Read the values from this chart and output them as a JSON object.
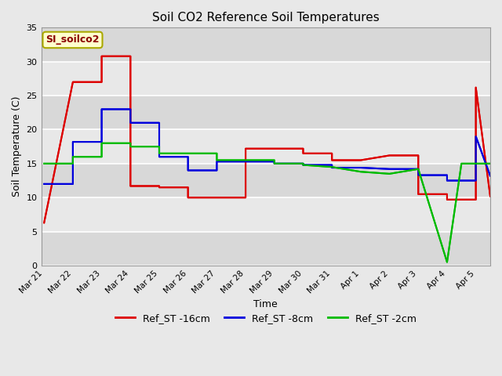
{
  "title": "Soil CO2 Reference Soil Temperatures",
  "xlabel": "Time",
  "ylabel": "Soil Temperature (C)",
  "ylim": [
    0,
    35
  ],
  "annotation_text": "SI_soilco2",
  "background_color": "#e8e8e8",
  "plot_bg_color": "#e0e0e0",
  "grid_color": "#d0d0d0",
  "series": {
    "Ref_ST -16cm": {
      "color": "#dd0000",
      "x": [
        0,
        1,
        2,
        2,
        3,
        3,
        4,
        4,
        5,
        5,
        6,
        6,
        7,
        7,
        8,
        8,
        9,
        9,
        10,
        10,
        11,
        12,
        13,
        13,
        14,
        14,
        15,
        15,
        15.5
      ],
      "y": [
        6.3,
        27.0,
        27.0,
        30.8,
        30.8,
        11.7,
        11.7,
        11.5,
        11.5,
        10.0,
        10.0,
        10.0,
        10.0,
        17.2,
        17.2,
        17.2,
        17.2,
        16.5,
        16.5,
        15.5,
        15.5,
        16.2,
        16.2,
        10.5,
        10.5,
        9.7,
        9.7,
        26.2,
        10.2
      ]
    },
    "Ref_ST -8cm": {
      "color": "#0000dd",
      "x": [
        0,
        1,
        1,
        2,
        2,
        3,
        3,
        4,
        4,
        5,
        5,
        6,
        6,
        7,
        7,
        8,
        8,
        9,
        9,
        10,
        10,
        11,
        12,
        13,
        13,
        14,
        14,
        15,
        15,
        15.5
      ],
      "y": [
        12.0,
        12.0,
        18.2,
        18.2,
        23.0,
        23.0,
        21.0,
        21.0,
        16.0,
        16.0,
        14.0,
        14.0,
        15.3,
        15.3,
        15.3,
        15.3,
        15.0,
        15.0,
        14.8,
        14.8,
        14.4,
        14.4,
        14.2,
        14.2,
        13.3,
        13.3,
        12.5,
        12.5,
        19.0,
        13.2
      ]
    },
    "Ref_ST -2cm": {
      "color": "#00bb00",
      "x": [
        0,
        1,
        1,
        2,
        2,
        3,
        3,
        4,
        4,
        5,
        5,
        6,
        6,
        7,
        7,
        8,
        8,
        9,
        9,
        10,
        11,
        12,
        12,
        13,
        13,
        14,
        14,
        14.5,
        15,
        15.5
      ],
      "y": [
        15.0,
        15.0,
        16.0,
        16.0,
        18.0,
        18.0,
        17.5,
        17.5,
        16.5,
        16.5,
        16.5,
        16.5,
        15.5,
        15.5,
        15.5,
        15.5,
        15.0,
        15.0,
        14.8,
        14.5,
        13.8,
        13.5,
        13.5,
        14.2,
        14.2,
        0.5,
        0.5,
        15.0,
        15.0,
        15.0
      ]
    }
  },
  "x_tick_positions": [
    0,
    1,
    2,
    3,
    4,
    5,
    6,
    7,
    8,
    9,
    10,
    11,
    12,
    13,
    14,
    15
  ],
  "x_tick_labels": [
    "Mar 21",
    "Mar 22",
    "Mar 23",
    "Mar 24",
    "Mar 25",
    "Mar 26",
    "Mar 27",
    "Mar 28",
    "Mar 29",
    "Mar 30",
    "Mar 31",
    "Apr 1",
    "Apr 2",
    "Apr 3",
    "Apr 4",
    "Apr 5"
  ],
  "legend_labels": [
    "Ref_ST -16cm",
    "Ref_ST -8cm",
    "Ref_ST -2cm"
  ],
  "legend_colors": [
    "#dd0000",
    "#0000dd",
    "#00bb00"
  ]
}
